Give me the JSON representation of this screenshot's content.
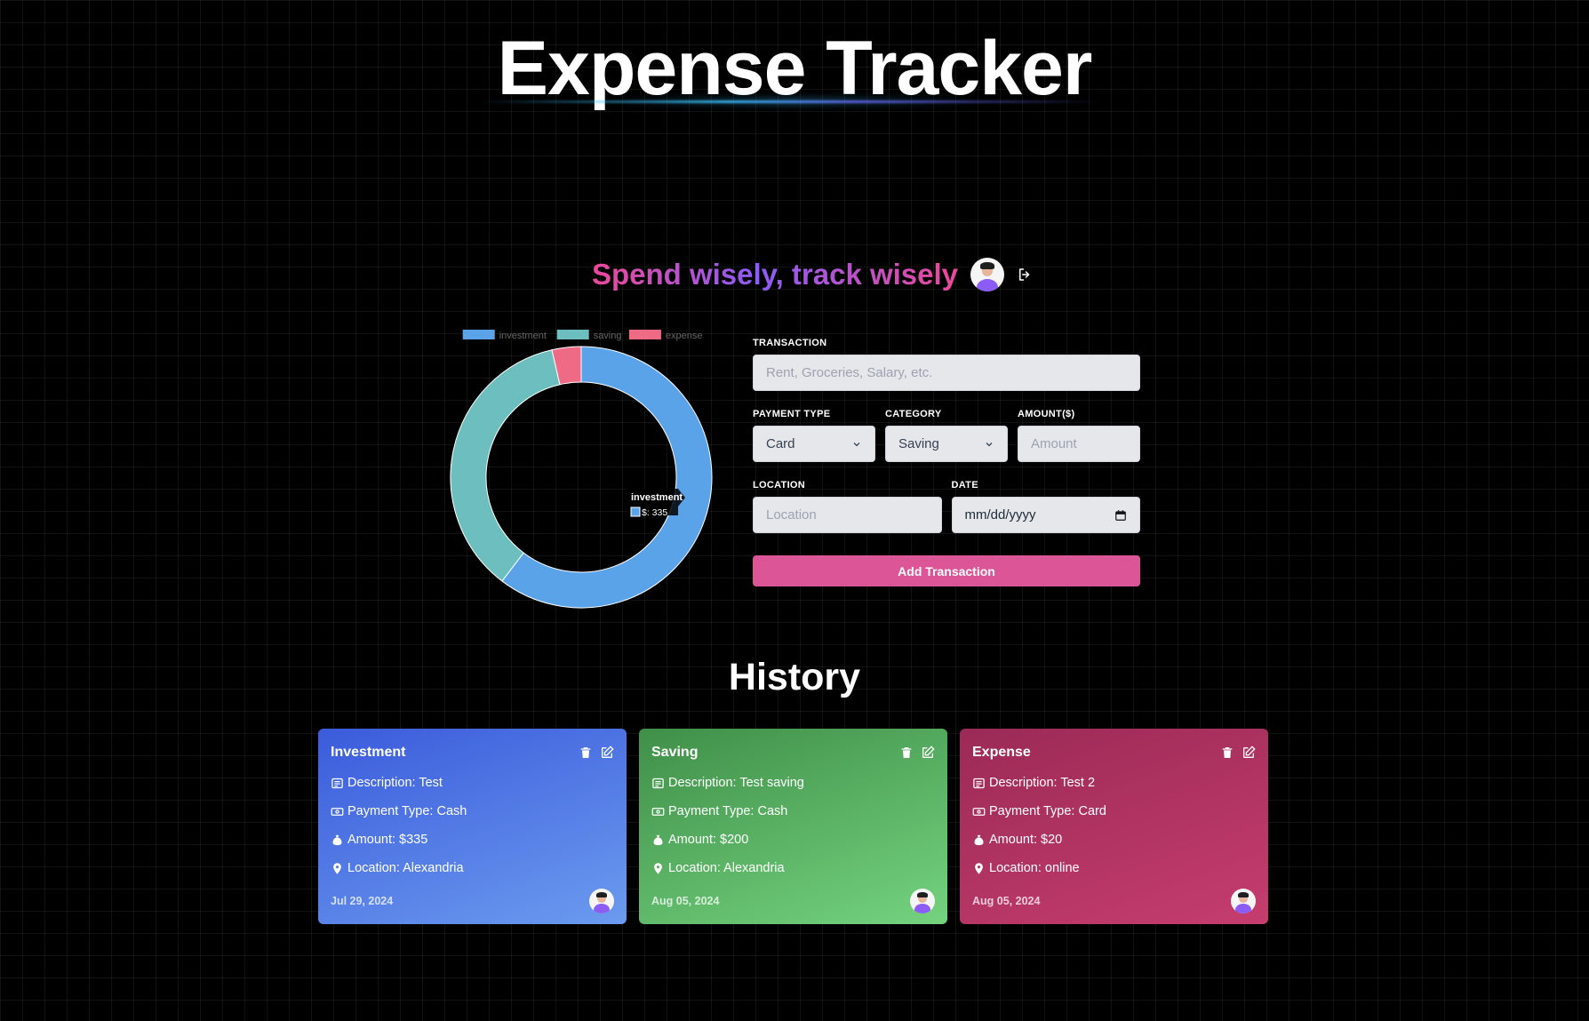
{
  "app": {
    "title": "Expense Tracker",
    "tagline": "Spend wisely, track wisely"
  },
  "chart_data": {
    "type": "pie",
    "variant": "doughnut",
    "categories": [
      "investment",
      "saving",
      "expense"
    ],
    "values": [
      335,
      200,
      20
    ],
    "colors": [
      "#5ba3e8",
      "#6dbfbf",
      "#ef6a85"
    ],
    "legend_position": "top",
    "tooltip": {
      "title": "investment",
      "label": "$: 335"
    }
  },
  "form": {
    "transaction_label": "TRANSACTION",
    "transaction_placeholder": "Rent, Groceries, Salary, etc.",
    "payment_type_label": "PAYMENT TYPE",
    "payment_type_value": "Card",
    "category_label": "CATEGORY",
    "category_value": "Saving",
    "amount_label": "AMOUNT($)",
    "amount_placeholder": "Amount",
    "location_label": "LOCATION",
    "location_placeholder": "Location",
    "date_label": "DATE",
    "date_placeholder": "mm/dd/yyyy",
    "submit_label": "Add Transaction"
  },
  "history": {
    "title": "History",
    "cards": [
      {
        "category": "Investment",
        "description": "Description: Test",
        "payment_type": "Payment Type: Cash",
        "amount": "Amount: $335",
        "location": "Location: Alexandria",
        "date": "Jul 29, 2024"
      },
      {
        "category": "Saving",
        "description": "Description: Test saving",
        "payment_type": "Payment Type: Cash",
        "amount": "Amount: $200",
        "location": "Location: Alexandria",
        "date": "Aug 05, 2024"
      },
      {
        "category": "Expense",
        "description": "Description: Test 2",
        "payment_type": "Payment Type: Card",
        "amount": "Amount: $20",
        "location": "Location: online",
        "date": "Aug 05, 2024"
      }
    ]
  }
}
